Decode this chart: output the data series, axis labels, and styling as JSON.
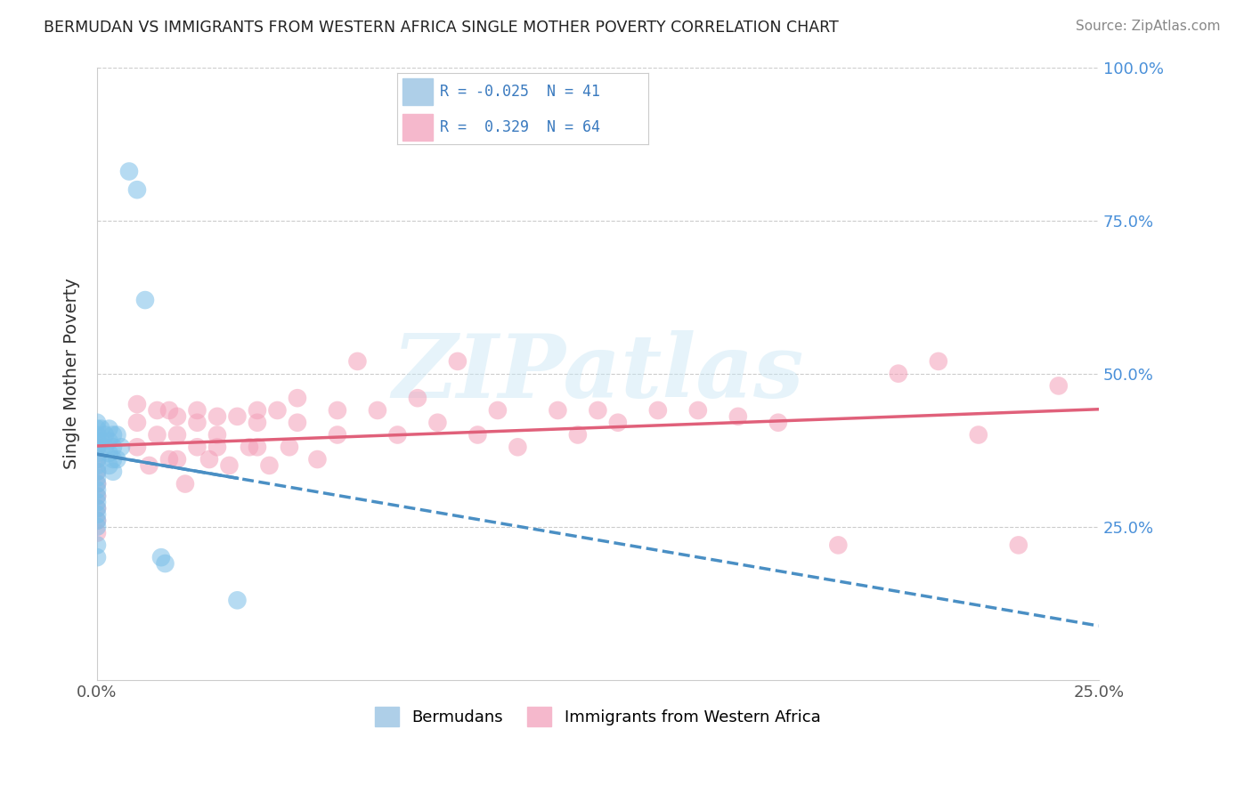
{
  "title": "BERMUDAN VS IMMIGRANTS FROM WESTERN AFRICA SINGLE MOTHER POVERTY CORRELATION CHART",
  "source": "Source: ZipAtlas.com",
  "ylabel": "Single Mother Poverty",
  "xlim": [
    0.0,
    0.25
  ],
  "ylim": [
    0.0,
    1.0
  ],
  "x_ticks": [
    0.0,
    0.05,
    0.1,
    0.15,
    0.2,
    0.25
  ],
  "x_tick_labels": [
    "0.0%",
    "",
    "",
    "",
    "",
    "25.0%"
  ],
  "y_ticks_right": [
    0.25,
    0.5,
    0.75,
    1.0
  ],
  "y_tick_labels_right": [
    "25.0%",
    "50.0%",
    "75.0%",
    "100.0%"
  ],
  "bermudan_color": "#7bbfe8",
  "western_africa_color": "#f4a0b8",
  "bermudan_line_color": "#4a8fc4",
  "western_africa_line_color": "#e0607a",
  "bermudan_R": -0.025,
  "bermudan_N": 41,
  "western_africa_R": 0.329,
  "western_africa_N": 64,
  "legend_label_1": "Bermudans",
  "legend_label_2": "Immigrants from Western Africa",
  "watermark": "ZIPatlas",
  "bermudan_x": [
    0.0,
    0.0,
    0.0,
    0.0,
    0.0,
    0.0,
    0.0,
    0.0,
    0.0,
    0.0,
    0.0,
    0.0,
    0.0,
    0.0,
    0.0,
    0.0,
    0.0,
    0.0,
    0.0,
    0.0,
    0.001,
    0.001,
    0.002,
    0.002,
    0.003,
    0.003,
    0.003,
    0.003,
    0.004,
    0.004,
    0.004,
    0.004,
    0.005,
    0.005,
    0.006,
    0.008,
    0.01,
    0.012,
    0.016,
    0.017,
    0.035
  ],
  "bermudan_y": [
    0.42,
    0.41,
    0.4,
    0.39,
    0.38,
    0.37,
    0.36,
    0.35,
    0.34,
    0.33,
    0.32,
    0.31,
    0.3,
    0.29,
    0.28,
    0.27,
    0.26,
    0.25,
    0.22,
    0.2,
    0.41,
    0.39,
    0.4,
    0.38,
    0.41,
    0.39,
    0.37,
    0.35,
    0.4,
    0.38,
    0.36,
    0.34,
    0.4,
    0.36,
    0.38,
    0.83,
    0.8,
    0.62,
    0.2,
    0.19,
    0.13
  ],
  "western_africa_x": [
    0.0,
    0.0,
    0.0,
    0.0,
    0.0,
    0.0,
    0.0,
    0.0,
    0.01,
    0.01,
    0.01,
    0.013,
    0.015,
    0.015,
    0.018,
    0.018,
    0.02,
    0.02,
    0.02,
    0.022,
    0.025,
    0.025,
    0.025,
    0.028,
    0.03,
    0.03,
    0.03,
    0.033,
    0.035,
    0.038,
    0.04,
    0.04,
    0.04,
    0.043,
    0.045,
    0.048,
    0.05,
    0.05,
    0.055,
    0.06,
    0.06,
    0.065,
    0.07,
    0.075,
    0.08,
    0.085,
    0.09,
    0.095,
    0.1,
    0.105,
    0.115,
    0.12,
    0.125,
    0.13,
    0.14,
    0.15,
    0.16,
    0.17,
    0.185,
    0.2,
    0.21,
    0.22,
    0.23,
    0.24
  ],
  "western_africa_y": [
    0.38,
    0.36,
    0.34,
    0.32,
    0.3,
    0.28,
    0.26,
    0.24,
    0.45,
    0.42,
    0.38,
    0.35,
    0.44,
    0.4,
    0.44,
    0.36,
    0.43,
    0.4,
    0.36,
    0.32,
    0.44,
    0.42,
    0.38,
    0.36,
    0.43,
    0.4,
    0.38,
    0.35,
    0.43,
    0.38,
    0.44,
    0.42,
    0.38,
    0.35,
    0.44,
    0.38,
    0.46,
    0.42,
    0.36,
    0.44,
    0.4,
    0.52,
    0.44,
    0.4,
    0.46,
    0.42,
    0.52,
    0.4,
    0.44,
    0.38,
    0.44,
    0.4,
    0.44,
    0.42,
    0.44,
    0.44,
    0.43,
    0.42,
    0.22,
    0.5,
    0.52,
    0.4,
    0.22,
    0.48
  ]
}
